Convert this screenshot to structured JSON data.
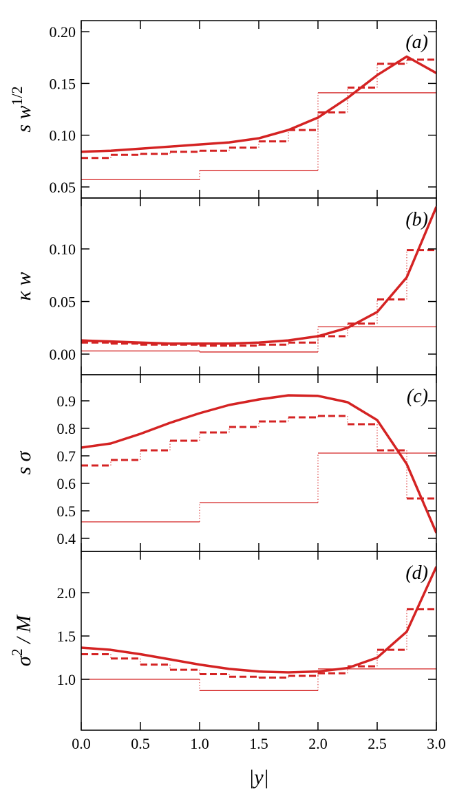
{
  "chart_data": [
    {
      "type": "line",
      "label": "(a)",
      "ylabel": {
        "base": "s w",
        "sup": "1/2"
      },
      "xlim": [
        0,
        3
      ],
      "xticks": [
        0,
        0.5,
        1,
        1.5,
        2,
        2.5,
        3
      ],
      "ylim": [
        0.0393,
        0.2107
      ],
      "yticks": [
        {
          "value": 0.05,
          "label": "0.05"
        },
        {
          "value": 0.1,
          "label": "0.10"
        },
        {
          "value": 0.15,
          "label": "0.15"
        },
        {
          "value": 0.2,
          "label": "0.20"
        }
      ],
      "x": [
        0,
        0.25,
        0.5,
        0.75,
        1,
        1.25,
        1.5,
        1.75,
        2,
        2.25,
        2.5,
        2.75,
        3
      ],
      "series": [
        {
          "color": "#d42323",
          "style": "solid",
          "values": [
            0.084,
            0.085,
            0.087,
            0.089,
            0.091,
            0.093,
            0.097,
            0.105,
            0.117,
            0.136,
            0.158,
            0.176,
            0.16
          ]
        }
      ],
      "steps": [
        {
          "color": "#d42323",
          "style": "dashed",
          "bins": [
            0,
            0.25,
            0.5,
            0.75,
            1,
            1.25,
            1.5,
            1.75,
            2,
            2.25,
            2.5,
            2.75,
            3
          ],
          "values": [
            0.078,
            0.081,
            0.082,
            0.084,
            0.085,
            0.088,
            0.094,
            0.105,
            0.122,
            0.146,
            0.169,
            0.173
          ]
        },
        {
          "color": "#d42323",
          "style": "thin",
          "bins": [
            0,
            1,
            2,
            3
          ],
          "values": [
            0.057,
            0.066,
            0.141
          ]
        }
      ]
    },
    {
      "type": "line",
      "label": "(b)",
      "ylabel": {
        "base": "κ w"
      },
      "xlim": [
        0,
        3
      ],
      "xticks": [
        0,
        0.5,
        1,
        1.5,
        2,
        2.5,
        3
      ],
      "ylim": [
        -0.0196,
        0.1484
      ],
      "yticks": [
        {
          "value": 0,
          "label": "0.00"
        },
        {
          "value": 0.05,
          "label": "0.05"
        },
        {
          "value": 0.1,
          "label": "0.10"
        }
      ],
      "x": [
        0,
        0.25,
        0.5,
        0.75,
        1,
        1.25,
        1.5,
        1.75,
        2,
        2.25,
        2.5,
        2.75,
        3
      ],
      "series": [
        {
          "color": "#d42323",
          "style": "solid",
          "values": [
            0.013,
            0.012,
            0.011,
            0.01,
            0.01,
            0.01,
            0.011,
            0.013,
            0.017,
            0.025,
            0.04,
            0.073,
            0.14
          ]
        }
      ],
      "steps": [
        {
          "color": "#d42323",
          "style": "dashed",
          "bins": [
            0,
            0.25,
            0.5,
            0.75,
            1,
            1.25,
            1.5,
            1.75,
            2,
            2.25,
            2.5,
            2.75,
            3
          ],
          "values": [
            0.011,
            0.01,
            0.009,
            0.009,
            0.008,
            0.008,
            0.009,
            0.011,
            0.017,
            0.029,
            0.052,
            0.099
          ]
        },
        {
          "color": "#d42323",
          "style": "thin",
          "bins": [
            0,
            1,
            2,
            3
          ],
          "values": [
            0.003,
            0.002,
            0.026
          ]
        }
      ]
    },
    {
      "type": "line",
      "label": "(c)",
      "ylabel": {
        "base": "s σ"
      },
      "xlim": [
        0,
        3
      ],
      "xticks": [
        0,
        0.5,
        1,
        1.5,
        2,
        2.5,
        3
      ],
      "ylim": [
        0.3525,
        0.995
      ],
      "yticks": [
        0.4,
        0.5,
        0.6,
        0.7,
        0.8,
        0.9
      ],
      "x": [
        0,
        0.25,
        0.5,
        0.75,
        1,
        1.25,
        1.5,
        1.75,
        2,
        2.25,
        2.5,
        2.75,
        3
      ],
      "series": [
        {
          "color": "#d42323",
          "style": "solid",
          "values": [
            0.73,
            0.745,
            0.78,
            0.82,
            0.855,
            0.885,
            0.905,
            0.92,
            0.918,
            0.895,
            0.83,
            0.67,
            0.42
          ]
        }
      ],
      "steps": [
        {
          "color": "#d42323",
          "style": "dashed",
          "bins": [
            0,
            0.25,
            0.5,
            0.75,
            1,
            1.25,
            1.5,
            1.75,
            2,
            2.25,
            2.5,
            2.75,
            3
          ],
          "values": [
            0.665,
            0.685,
            0.72,
            0.755,
            0.785,
            0.805,
            0.825,
            0.84,
            0.845,
            0.815,
            0.72,
            0.545
          ]
        },
        {
          "color": "#d42323",
          "style": "thin",
          "bins": [
            0,
            1,
            2,
            3
          ],
          "values": [
            0.46,
            0.53,
            0.71
          ]
        }
      ]
    },
    {
      "type": "line",
      "label": "(d)",
      "ylabel": {
        "base": "σ",
        "sup": "2",
        "tail": " / M"
      },
      "xlabel": "|y|",
      "xlim": [
        0,
        3
      ],
      "xticks": [
        {
          "value": 0,
          "label": "0.0"
        },
        {
          "value": 0.5,
          "label": "0.5"
        },
        {
          "value": 1,
          "label": "1.0"
        },
        {
          "value": 1.5,
          "label": "1.5"
        },
        {
          "value": 2,
          "label": "2.0"
        },
        {
          "value": 2.5,
          "label": "2.5"
        },
        {
          "value": 3,
          "label": "3.0"
        }
      ],
      "ylim": [
        0.413,
        2.476
      ],
      "yticks": [
        {
          "value": 1,
          "label": "1.0"
        },
        {
          "value": 1.5,
          "label": "1.5"
        },
        {
          "value": 2,
          "label": "2.0"
        }
      ],
      "x": [
        0,
        0.25,
        0.5,
        0.75,
        1,
        1.25,
        1.5,
        1.75,
        2,
        2.25,
        2.5,
        2.75,
        3
      ],
      "series": [
        {
          "color": "#d42323",
          "style": "solid",
          "values": [
            1.365,
            1.34,
            1.29,
            1.23,
            1.17,
            1.12,
            1.09,
            1.08,
            1.09,
            1.13,
            1.25,
            1.55,
            2.3
          ]
        }
      ],
      "steps": [
        {
          "color": "#d42323",
          "style": "dashed",
          "bins": [
            0,
            0.25,
            0.5,
            0.75,
            1,
            1.25,
            1.5,
            1.75,
            2,
            2.25,
            2.5,
            2.75,
            3
          ],
          "values": [
            1.29,
            1.24,
            1.17,
            1.11,
            1.06,
            1.03,
            1.02,
            1.04,
            1.07,
            1.15,
            1.34,
            1.81
          ]
        },
        {
          "color": "#d42323",
          "style": "thin",
          "bins": [
            0,
            1,
            2,
            3
          ],
          "values": [
            1.0,
            0.87,
            1.12
          ]
        }
      ]
    }
  ]
}
